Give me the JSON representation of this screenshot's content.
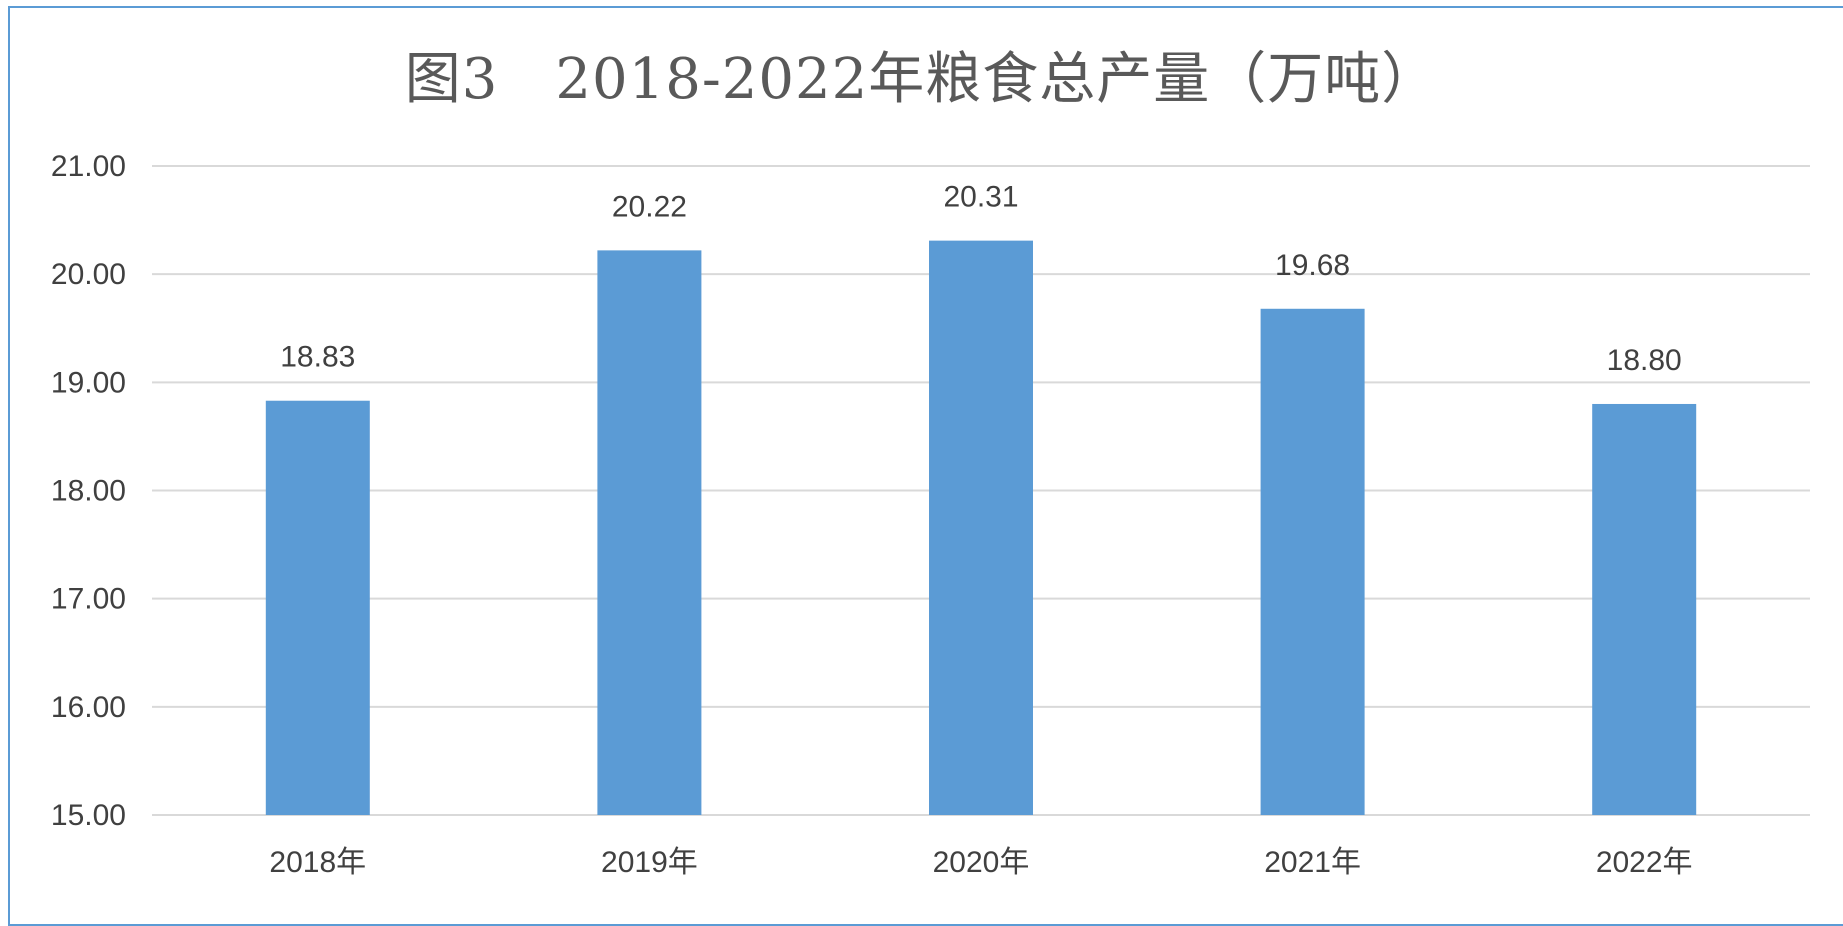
{
  "chart_data": {
    "type": "bar",
    "title": "图3　2018-2022年粮食总产量（万吨）",
    "categories": [
      "2018年",
      "2019年",
      "2020年",
      "2021年",
      "2022年"
    ],
    "values": [
      18.83,
      20.22,
      20.31,
      19.68,
      18.8
    ],
    "value_labels": [
      "18.83",
      "20.22",
      "20.31",
      "19.68",
      "18.80"
    ],
    "ylim": [
      15,
      21
    ],
    "y_ticks": [
      15,
      16,
      17,
      18,
      19,
      20,
      21
    ],
    "y_tick_labels": [
      "15.00",
      "16.00",
      "17.00",
      "18.00",
      "19.00",
      "20.00",
      "21.00"
    ],
    "grid": true,
    "legend": "none",
    "colors": {
      "bar": "#5b9bd5",
      "grid": "#d9d9d9",
      "text": "#404040",
      "title": "#595959",
      "frame": "#5b9bd5"
    }
  }
}
